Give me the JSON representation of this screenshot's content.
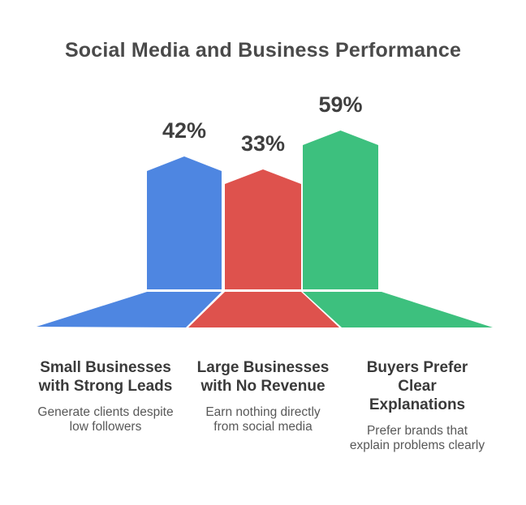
{
  "title": "Social Media and Business Performance",
  "colors": {
    "bar_blue": "#4e86e1",
    "bar_red": "#de524d",
    "bar_green": "#3dc07e",
    "title_text": "#4a4a4a",
    "percent_text": "#3f3f3f",
    "heading_text": "#3a3a3a",
    "sub_text": "#585858",
    "background": "#ffffff"
  },
  "chart_data": {
    "type": "bar",
    "title": "Social Media and Business Performance",
    "categories": [
      "Small Businesses with Strong Leads",
      "Large Businesses with No Revenue",
      "Buyers Prefer Clear Explanations"
    ],
    "values": [
      42,
      33,
      59
    ],
    "unit": "%",
    "xlabel": "",
    "ylabel": "",
    "legend": false,
    "grid": false,
    "axes_hidden": true,
    "bar_shape": "pentagon-with-flared-base",
    "series": [
      {
        "name": "Small Businesses with Strong Leads",
        "value": 42,
        "pct_label": "42%",
        "label": "Small Businesses\nwith Strong Leads",
        "description": "Generate clients despite\nlow followers",
        "color": "#4e86e1"
      },
      {
        "name": "Large Businesses with No Revenue",
        "value": 33,
        "pct_label": "33%",
        "label": "Large Businesses\nwith No Revenue",
        "description": "Earn nothing directly\nfrom social media",
        "color": "#de524d"
      },
      {
        "name": "Buyers Prefer Clear Explanations",
        "value": 59,
        "pct_label": "59%",
        "label": "Buyers Prefer\nClear\nExplanations",
        "description": "Prefer brands that\nexplain problems clearly",
        "color": "#3dc07e"
      }
    ]
  }
}
